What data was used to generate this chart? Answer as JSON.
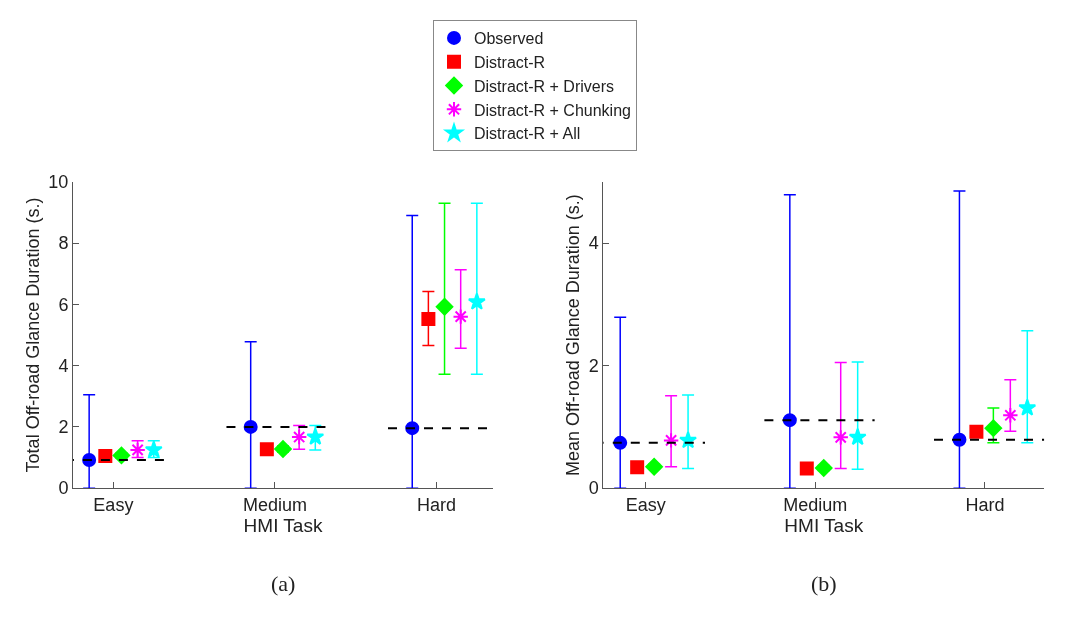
{
  "chart_data": [
    {
      "type": "scatter",
      "categories": [
        "Easy",
        "Medium",
        "Hard"
      ],
      "xlabel": "HMI Task",
      "ylabel": "Total Off-road Glance Duration (s.)",
      "ylim": [
        0,
        10
      ],
      "yticks": [
        0,
        2,
        4,
        6,
        8,
        10
      ],
      "legend": "top",
      "annotations": [
        "(a)"
      ],
      "series": [
        {
          "name": "Observed",
          "color": "#0000ff",
          "marker": "circle",
          "values": [
            0.92,
            2.0,
            1.96
          ],
          "errors": [
            [
              0,
              3.05
            ],
            [
              0,
              4.78
            ],
            [
              0,
              8.9
            ]
          ]
        },
        {
          "name": "Distract-R",
          "color": "#ff0000",
          "marker": "square",
          "values": [
            1.05,
            1.27,
            5.52
          ],
          "errors": [
            null,
            null,
            [
              4.66,
              6.42
            ]
          ]
        },
        {
          "name": "Distract-R + Drivers",
          "color": "#00ff00",
          "marker": "diamond",
          "values": [
            1.07,
            1.28,
            5.92
          ],
          "errors": [
            [
              0.98,
              1.15
            ],
            [
              1.18,
              1.38
            ],
            [
              3.72,
              9.3
            ]
          ]
        },
        {
          "name": "Distract-R + Chunking",
          "color": "#ff00ff",
          "marker": "cross",
          "values": [
            1.25,
            1.67,
            5.6
          ],
          "errors": [
            [
              1.0,
              1.55
            ],
            [
              1.27,
              2.05
            ],
            [
              4.57,
              7.13
            ]
          ]
        },
        {
          "name": "Distract-R + All",
          "color": "#00ffff",
          "marker": "star",
          "values": [
            1.25,
            1.67,
            6.08
          ],
          "errors": [
            [
              1.0,
              1.55
            ],
            [
              1.25,
              2.05
            ],
            [
              3.72,
              9.3
            ]
          ]
        }
      ],
      "ref_lines": [
        {
          "axis": "y",
          "value": 0.92,
          "color": "#000000",
          "line_style": "dashed"
        },
        {
          "axis": "y",
          "value": 2.0,
          "color": "#000000",
          "line_style": "dashed"
        },
        {
          "axis": "y",
          "value": 1.96,
          "color": "#000000",
          "line_style": "dashed"
        }
      ]
    },
    {
      "type": "scatter",
      "categories": [
        "Easy",
        "Medium",
        "Hard"
      ],
      "xlabel": "HMI Task",
      "ylabel": "Mean Off-road Glance Duration (s.)",
      "ylim": [
        0,
        5
      ],
      "yticks": [
        0,
        2,
        4
      ],
      "annotations": [
        "(b)"
      ],
      "series": [
        {
          "color": "#0000ff",
          "marker": "circle",
          "values": [
            0.74,
            1.11,
            0.79
          ],
          "errors": [
            [
              0,
              2.79
            ],
            [
              0,
              4.79
            ],
            [
              0,
              4.85
            ]
          ]
        },
        {
          "color": "#ff0000",
          "marker": "square",
          "values": [
            0.34,
            0.32,
            0.92
          ],
          "errors": [
            null,
            null,
            null
          ]
        },
        {
          "color": "#00ff00",
          "marker": "diamond",
          "values": [
            0.35,
            0.33,
            0.98
          ],
          "errors": [
            [
              0.31,
              0.39
            ],
            [
              0.29,
              0.37
            ],
            [
              0.74,
              1.31
            ]
          ]
        },
        {
          "color": "#ff00ff",
          "marker": "cross",
          "values": [
            0.78,
            0.83,
            1.19
          ],
          "errors": [
            [
              0.35,
              1.51
            ],
            [
              0.32,
              2.05
            ],
            [
              0.93,
              1.77
            ]
          ]
        },
        {
          "color": "#00ffff",
          "marker": "star",
          "values": [
            0.78,
            0.83,
            1.31
          ],
          "errors": [
            [
              0.32,
              1.52
            ],
            [
              0.31,
              2.06
            ],
            [
              0.74,
              2.57
            ]
          ]
        }
      ],
      "ref_lines": [
        {
          "axis": "y",
          "value": 0.74,
          "color": "#000000",
          "line_style": "dashed"
        },
        {
          "axis": "y",
          "value": 1.11,
          "color": "#000000",
          "line_style": "dashed"
        },
        {
          "axis": "y",
          "value": 0.79,
          "color": "#000000",
          "line_style": "dashed"
        }
      ]
    }
  ]
}
